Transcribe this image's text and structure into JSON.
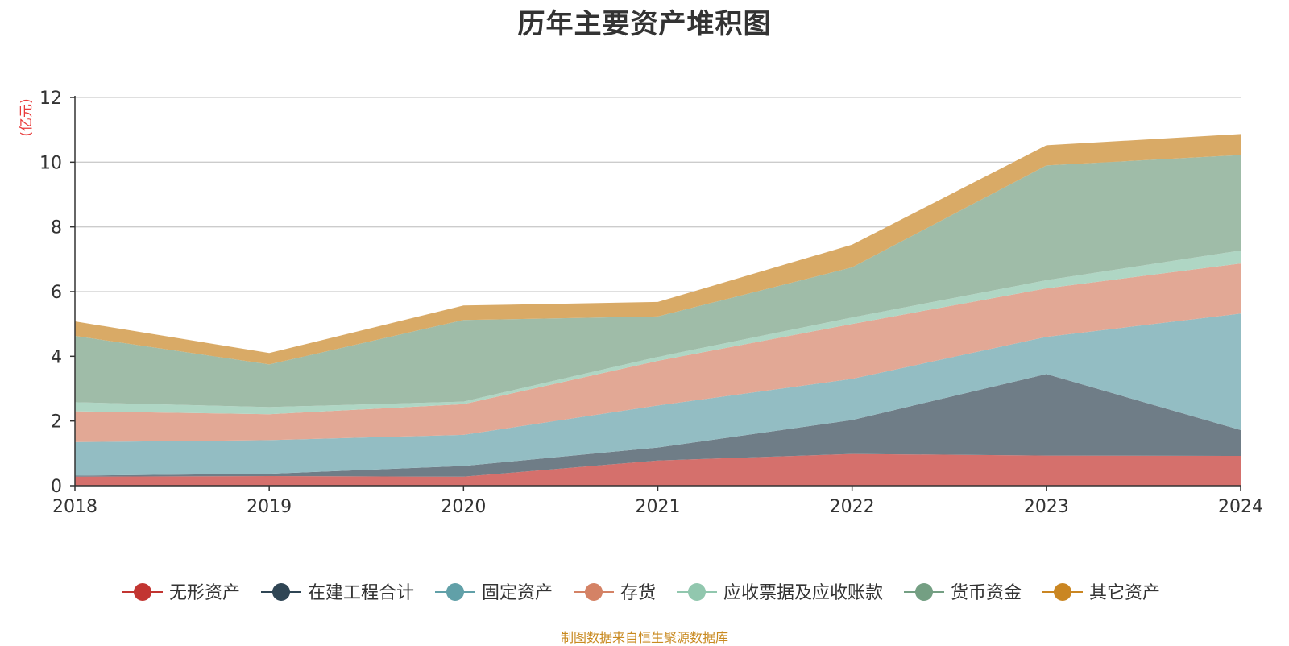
{
  "chart_data": {
    "type": "area",
    "stacked": true,
    "title": "历年主要资产堆积图",
    "unit_label": "(亿元)",
    "x": [
      "2018",
      "2019",
      "2020",
      "2021",
      "2022",
      "2023",
      "2024"
    ],
    "ylim": [
      0,
      12
    ],
    "yticks": [
      "0",
      "2",
      "4",
      "6",
      "8",
      "10",
      "12"
    ],
    "grid": true,
    "legend_position": "bottom",
    "series": [
      {
        "name": "无形资产",
        "color": "#c23531",
        "fill": "#d5706c",
        "values": [
          0.28,
          0.3,
          0.28,
          0.78,
          0.98,
          0.93,
          0.92
        ]
      },
      {
        "name": "在建工程合计",
        "color": "#2f4554",
        "fill": "#6f7d87",
        "values": [
          0.03,
          0.07,
          0.33,
          0.4,
          1.05,
          2.52,
          0.8
        ]
      },
      {
        "name": "固定资产",
        "color": "#61a0a8",
        "fill": "#93bdc3",
        "values": [
          1.04,
          1.04,
          0.96,
          1.3,
          1.27,
          1.15,
          3.6
        ]
      },
      {
        "name": "存货",
        "color": "#d48265",
        "fill": "#e2a895",
        "values": [
          0.95,
          0.8,
          0.95,
          1.38,
          1.7,
          1.5,
          1.55
        ]
      },
      {
        "name": "应收票据及应收账款",
        "color": "#91c7ae",
        "fill": "#afd6c4",
        "values": [
          0.28,
          0.22,
          0.08,
          0.12,
          0.2,
          0.25,
          0.4
        ]
      },
      {
        "name": "货币资金",
        "color": "#749f83",
        "fill": "#9fbca8",
        "values": [
          2.05,
          1.32,
          2.52,
          1.25,
          1.55,
          3.55,
          2.95
        ]
      },
      {
        "name": "其它资产",
        "color": "#ca8622",
        "fill": "#d9aa66",
        "values": [
          0.45,
          0.35,
          0.45,
          0.45,
          0.7,
          0.62,
          0.65
        ]
      }
    ]
  },
  "footer": {
    "source": "制图数据来自恒生聚源数据库"
  }
}
